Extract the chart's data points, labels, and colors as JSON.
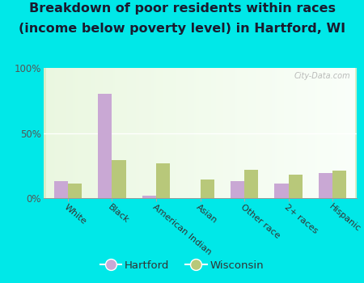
{
  "categories": [
    "White",
    "Black",
    "American Indian",
    "Asian",
    "Other race",
    "2+ races",
    "Hispanic"
  ],
  "hartford": [
    13,
    80,
    2,
    0,
    13,
    11,
    19
  ],
  "wisconsin": [
    11,
    29,
    27,
    14,
    22,
    18,
    21
  ],
  "hartford_color": "#c9a8d4",
  "wisconsin_color": "#b8c87a",
  "title_line1": "Breakdown of poor residents within races",
  "title_line2": "(income below poverty level) in Hartford, WI",
  "title_fontsize": 11.5,
  "ylabel_ticks": [
    "0%",
    "50%",
    "100%"
  ],
  "yticks": [
    0,
    50,
    100
  ],
  "ylim": [
    0,
    100
  ],
  "background_outer": "#00e8e8",
  "legend_hartford": "Hartford",
  "legend_wisconsin": "Wisconsin",
  "bar_width": 0.32,
  "watermark": "City-Data.com"
}
